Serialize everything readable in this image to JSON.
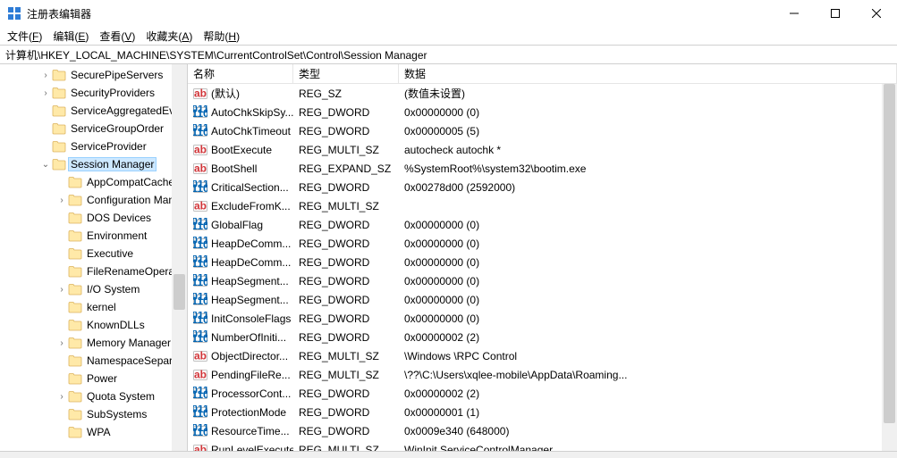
{
  "window": {
    "title": "注册表编辑器"
  },
  "menu": {
    "file": "文件(F)",
    "edit": "编辑(E)",
    "view": "查看(V)",
    "favorites": "收藏夹(A)",
    "help": "帮助(H)"
  },
  "address": "计算机\\HKEY_LOCAL_MACHINE\\SYSTEM\\CurrentControlSet\\Control\\Session Manager",
  "tree": [
    {
      "indent": 44,
      "exp": ">",
      "label": "SecurePipeServers"
    },
    {
      "indent": 44,
      "exp": ">",
      "label": "SecurityProviders"
    },
    {
      "indent": 44,
      "exp": "",
      "label": "ServiceAggregatedEv"
    },
    {
      "indent": 44,
      "exp": "",
      "label": "ServiceGroupOrder"
    },
    {
      "indent": 44,
      "exp": "",
      "label": "ServiceProvider"
    },
    {
      "indent": 44,
      "exp": "v",
      "label": "Session Manager",
      "selected": true
    },
    {
      "indent": 62,
      "exp": "",
      "label": "AppCompatCache"
    },
    {
      "indent": 62,
      "exp": ">",
      "label": "Configuration Man"
    },
    {
      "indent": 62,
      "exp": "",
      "label": "DOS Devices"
    },
    {
      "indent": 62,
      "exp": "",
      "label": "Environment"
    },
    {
      "indent": 62,
      "exp": "",
      "label": "Executive"
    },
    {
      "indent": 62,
      "exp": "",
      "label": "FileRenameOperat"
    },
    {
      "indent": 62,
      "exp": ">",
      "label": "I/O System"
    },
    {
      "indent": 62,
      "exp": "",
      "label": "kernel"
    },
    {
      "indent": 62,
      "exp": "",
      "label": "KnownDLLs"
    },
    {
      "indent": 62,
      "exp": ">",
      "label": "Memory Manager"
    },
    {
      "indent": 62,
      "exp": "",
      "label": "NamespaceSepara"
    },
    {
      "indent": 62,
      "exp": "",
      "label": "Power"
    },
    {
      "indent": 62,
      "exp": ">",
      "label": "Quota System"
    },
    {
      "indent": 62,
      "exp": "",
      "label": "SubSystems"
    },
    {
      "indent": 62,
      "exp": "",
      "label": "WPA"
    }
  ],
  "list": {
    "headers": {
      "name": "名称",
      "type": "类型",
      "data": "数据"
    },
    "rows": [
      {
        "icon": "str",
        "name": "(默认)",
        "type": "REG_SZ",
        "data": "(数值未设置)"
      },
      {
        "icon": "bin",
        "name": "AutoChkSkipSy...",
        "type": "REG_DWORD",
        "data": "0x00000000 (0)"
      },
      {
        "icon": "bin",
        "name": "AutoChkTimeout",
        "type": "REG_DWORD",
        "data": "0x00000005 (5)"
      },
      {
        "icon": "str",
        "name": "BootExecute",
        "type": "REG_MULTI_SZ",
        "data": "autocheck autochk *"
      },
      {
        "icon": "str",
        "name": "BootShell",
        "type": "REG_EXPAND_SZ",
        "data": "%SystemRoot%\\system32\\bootim.exe"
      },
      {
        "icon": "bin",
        "name": "CriticalSection...",
        "type": "REG_DWORD",
        "data": "0x00278d00 (2592000)"
      },
      {
        "icon": "str",
        "name": "ExcludeFromK...",
        "type": "REG_MULTI_SZ",
        "data": ""
      },
      {
        "icon": "bin",
        "name": "GlobalFlag",
        "type": "REG_DWORD",
        "data": "0x00000000 (0)"
      },
      {
        "icon": "bin",
        "name": "HeapDeComm...",
        "type": "REG_DWORD",
        "data": "0x00000000 (0)"
      },
      {
        "icon": "bin",
        "name": "HeapDeComm...",
        "type": "REG_DWORD",
        "data": "0x00000000 (0)"
      },
      {
        "icon": "bin",
        "name": "HeapSegment...",
        "type": "REG_DWORD",
        "data": "0x00000000 (0)"
      },
      {
        "icon": "bin",
        "name": "HeapSegment...",
        "type": "REG_DWORD",
        "data": "0x00000000 (0)"
      },
      {
        "icon": "bin",
        "name": "InitConsoleFlags",
        "type": "REG_DWORD",
        "data": "0x00000000 (0)"
      },
      {
        "icon": "bin",
        "name": "NumberOfIniti...",
        "type": "REG_DWORD",
        "data": "0x00000002 (2)"
      },
      {
        "icon": "str",
        "name": "ObjectDirector...",
        "type": "REG_MULTI_SZ",
        "data": "\\Windows \\RPC Control"
      },
      {
        "icon": "str",
        "name": "PendingFileRe...",
        "type": "REG_MULTI_SZ",
        "data": "\\??\\C:\\Users\\xqlee-mobile\\AppData\\Roaming..."
      },
      {
        "icon": "bin",
        "name": "ProcessorCont...",
        "type": "REG_DWORD",
        "data": "0x00000002 (2)"
      },
      {
        "icon": "bin",
        "name": "ProtectionMode",
        "type": "REG_DWORD",
        "data": "0x00000001 (1)"
      },
      {
        "icon": "bin",
        "name": "ResourceTime...",
        "type": "REG_DWORD",
        "data": "0x0009e340 (648000)"
      },
      {
        "icon": "str",
        "name": "RunLevelExecute",
        "type": "REG_MULTI_SZ",
        "data": "WinInit ServiceControlManager"
      }
    ]
  },
  "colors": {
    "selection_bg": "#cde8ff",
    "selection_border": "#99d1ff",
    "folder_fill": "#ffe9a8",
    "folder_stroke": "#dcb35c",
    "str_icon_bg": "#ffffff",
    "str_icon_text": "#d13438",
    "bin_icon_bg": "#ffffff",
    "bin_icon_text": "#0063b1"
  }
}
